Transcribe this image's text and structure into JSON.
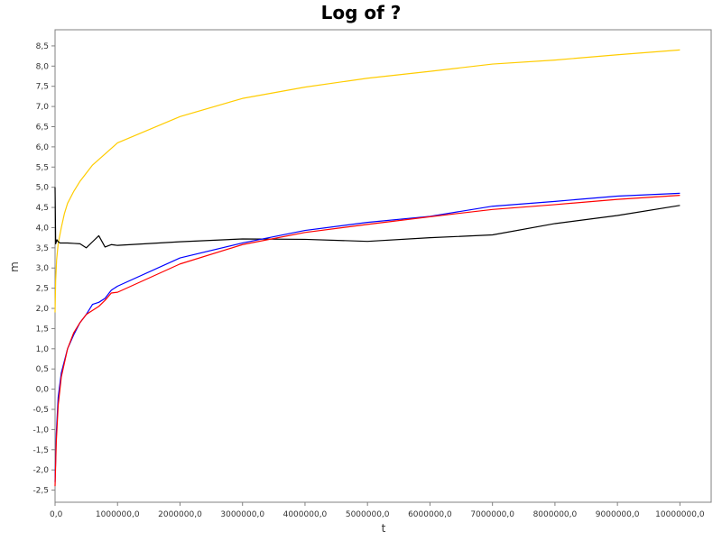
{
  "chart_data": {
    "type": "line",
    "title": "Log of ?",
    "xlabel": "t",
    "ylabel": "m",
    "xlim": [
      0,
      10500000
    ],
    "ylim": [
      -2.8,
      8.9
    ],
    "x_ticks": [
      0,
      1000000,
      2000000,
      3000000,
      4000000,
      5000000,
      6000000,
      7000000,
      8000000,
      9000000,
      10000000
    ],
    "x_tick_labels": [
      "0,0",
      "1000000,0",
      "2000000,0",
      "3000000,0",
      "4000000,0",
      "5000000,0",
      "6000000,0",
      "7000000,0",
      "8000000,0",
      "9000000,0",
      "10000000,0"
    ],
    "y_ticks": [
      -2.5,
      -2.0,
      -1.5,
      -1.0,
      -0.5,
      0.0,
      0.5,
      1.0,
      1.5,
      2.0,
      2.5,
      3.0,
      3.5,
      4.0,
      4.5,
      5.0,
      5.5,
      6.0,
      6.5,
      7.0,
      7.5,
      8.0,
      8.5
    ],
    "y_tick_labels": [
      "-2,5",
      "-2,0",
      "-1,5",
      "-1,0",
      "-0,5",
      "0,0",
      "0,5",
      "1,0",
      "1,5",
      "2,0",
      "2,5",
      "3,0",
      "3,5",
      "4,0",
      "4,5",
      "5,0",
      "5,5",
      "6,0",
      "6,5",
      "7,0",
      "7,5",
      "8,0",
      "8,5"
    ],
    "grid": false,
    "legend": "none",
    "series": [
      {
        "color": "#ffcc00",
        "x": [
          0,
          10000,
          25000,
          50000,
          100000,
          150000,
          200000,
          300000,
          400000,
          600000,
          1000000,
          2000000,
          3000000,
          4000000,
          5000000,
          6000000,
          7000000,
          8000000,
          9000000,
          10000000
        ],
        "y": [
          1.9,
          2.7,
          3.2,
          3.6,
          4.0,
          4.35,
          4.6,
          4.9,
          5.15,
          5.55,
          6.1,
          6.75,
          7.2,
          7.48,
          7.7,
          7.87,
          8.05,
          8.15,
          8.28,
          8.4
        ]
      },
      {
        "color": "#000000",
        "x": [
          0,
          10000,
          30000,
          50000,
          80000,
          100000,
          200000,
          300000,
          400000,
          500000,
          600000,
          700000,
          800000,
          900000,
          1000000,
          2000000,
          3000000,
          4000000,
          5000000,
          6000000,
          7000000,
          8000000,
          9000000,
          10000000
        ],
        "y": [
          5.0,
          3.6,
          3.7,
          3.65,
          3.62,
          3.62,
          3.62,
          3.61,
          3.6,
          3.5,
          3.65,
          3.8,
          3.52,
          3.58,
          3.56,
          3.65,
          3.72,
          3.71,
          3.66,
          3.75,
          3.82,
          4.1,
          4.3,
          4.55
        ]
      },
      {
        "color": "#0000ff",
        "x": [
          0,
          20000,
          50000,
          100000,
          200000,
          300000,
          400000,
          500000,
          600000,
          700000,
          800000,
          900000,
          1000000,
          2000000,
          3000000,
          4000000,
          5000000,
          6000000,
          7000000,
          8000000,
          9000000,
          10000000
        ],
        "y": [
          -2.3,
          -1.1,
          -0.2,
          0.4,
          1.0,
          1.35,
          1.65,
          1.85,
          2.1,
          2.15,
          2.25,
          2.45,
          2.55,
          3.25,
          3.62,
          3.93,
          4.13,
          4.28,
          4.53,
          4.65,
          4.78,
          4.85
        ]
      },
      {
        "color": "#ff0000",
        "x": [
          0,
          20000,
          50000,
          100000,
          200000,
          300000,
          400000,
          500000,
          600000,
          700000,
          800000,
          900000,
          1000000,
          2000000,
          3000000,
          4000000,
          5000000,
          6000000,
          7000000,
          8000000,
          9000000,
          10000000
        ],
        "y": [
          -2.4,
          -1.3,
          -0.4,
          0.3,
          1.0,
          1.4,
          1.65,
          1.85,
          1.95,
          2.05,
          2.2,
          2.38,
          2.4,
          3.1,
          3.58,
          3.88,
          4.08,
          4.27,
          4.45,
          4.57,
          4.7,
          4.8
        ]
      }
    ]
  }
}
